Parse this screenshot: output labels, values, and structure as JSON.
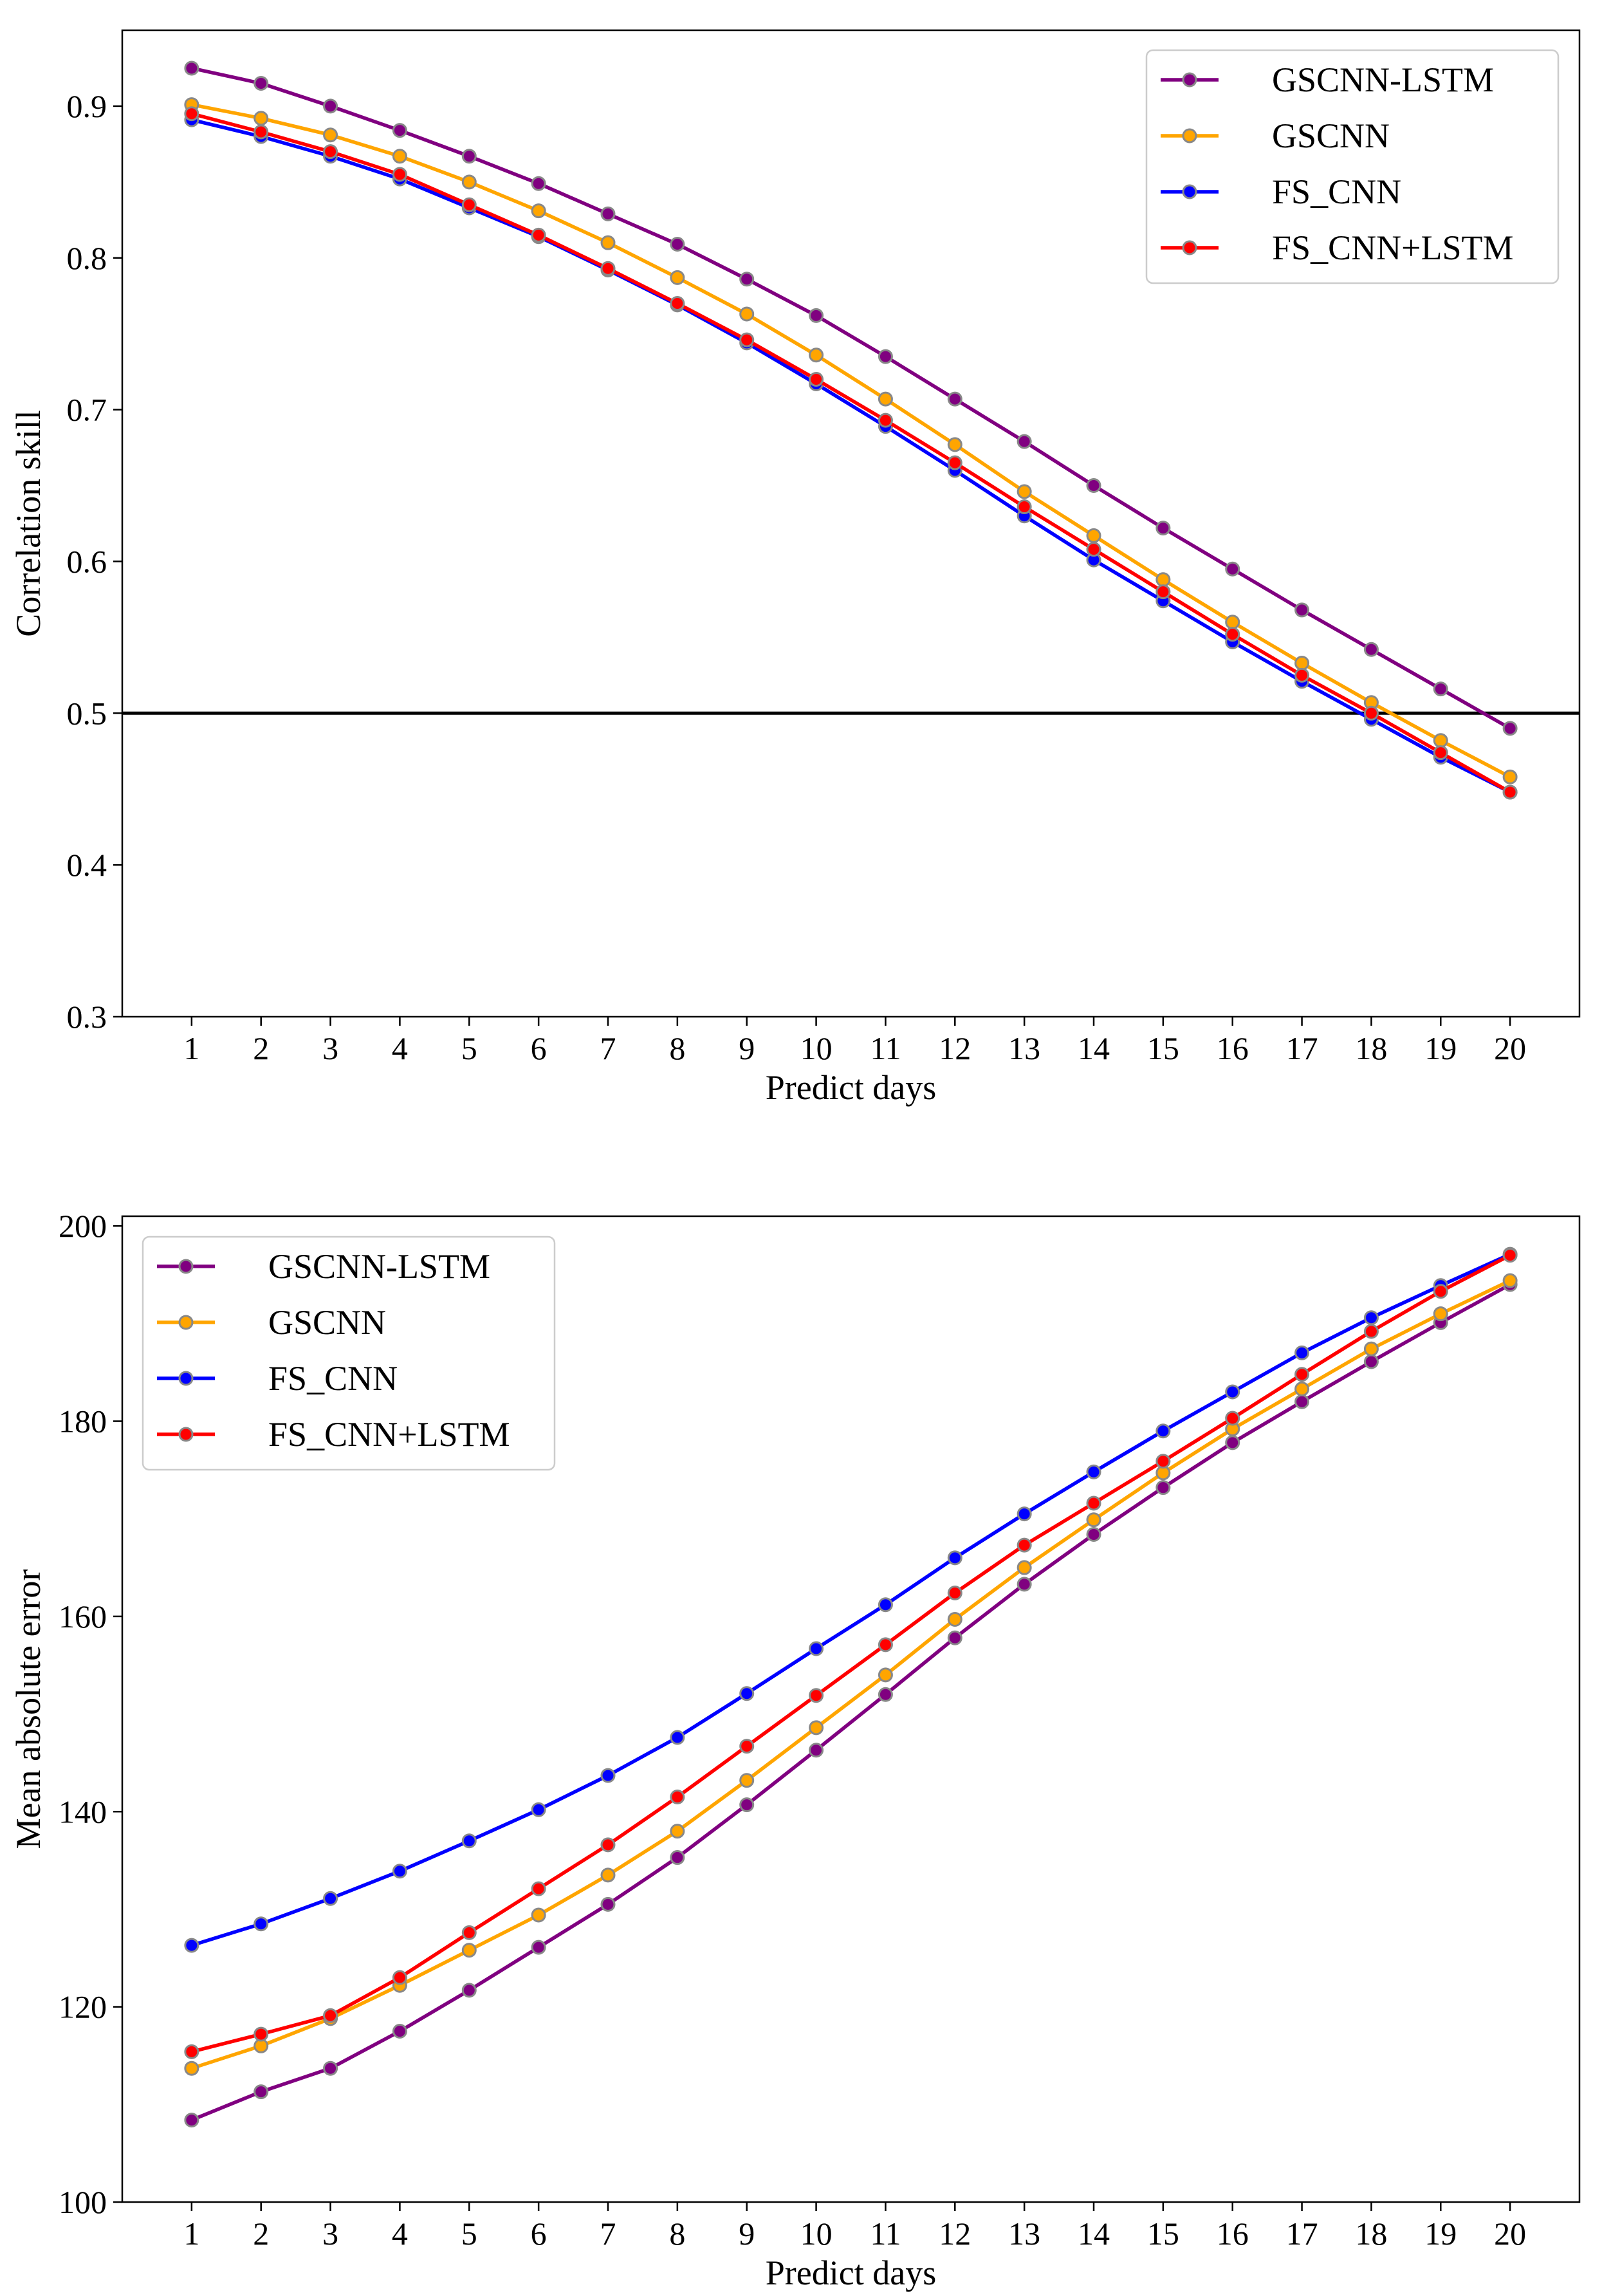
{
  "chart_data": [
    {
      "type": "line",
      "title": "",
      "xlabel": "Predict days",
      "ylabel": "Correlation skill",
      "xlim": [
        0,
        21
      ],
      "ylim": [
        0.3,
        0.95
      ],
      "yticks": [
        0.3,
        0.4,
        0.5,
        0.6,
        0.7,
        0.8,
        0.9
      ],
      "ytick_labels": [
        "0.3",
        "0.4",
        "0.5",
        "0.6",
        "0.7",
        "0.8",
        "0.9"
      ],
      "x": [
        1,
        2,
        3,
        4,
        5,
        6,
        7,
        8,
        9,
        10,
        11,
        12,
        13,
        14,
        15,
        16,
        17,
        18,
        19,
        20
      ],
      "xtick_labels": [
        "1",
        "2",
        "3",
        "4",
        "5",
        "6",
        "7",
        "8",
        "9",
        "10",
        "11",
        "12",
        "13",
        "14",
        "15",
        "16",
        "17",
        "18",
        "19",
        "20"
      ],
      "hline": 0.5,
      "grid": false,
      "legend_position": "top-right",
      "series": [
        {
          "name": "GSCNN-LSTM",
          "color": "#800080",
          "values": [
            0.925,
            0.915,
            0.9,
            0.884,
            0.867,
            0.849,
            0.829,
            0.809,
            0.786,
            0.762,
            0.735,
            0.707,
            0.679,
            0.65,
            0.622,
            0.595,
            0.568,
            0.542,
            0.516,
            0.49
          ]
        },
        {
          "name": "GSCNN",
          "color": "#FFA500",
          "values": [
            0.901,
            0.892,
            0.881,
            0.867,
            0.85,
            0.831,
            0.81,
            0.787,
            0.763,
            0.736,
            0.707,
            0.677,
            0.646,
            0.617,
            0.588,
            0.56,
            0.533,
            0.507,
            0.482,
            0.458
          ]
        },
        {
          "name": "FS_CNN",
          "color": "#0000FF",
          "values": [
            0.891,
            0.88,
            0.867,
            0.852,
            0.833,
            0.814,
            0.792,
            0.769,
            0.744,
            0.717,
            0.689,
            0.66,
            0.63,
            0.601,
            0.574,
            0.547,
            0.521,
            0.496,
            0.471,
            0.448
          ]
        },
        {
          "name": "FS_CNN+LSTM",
          "color": "#FF0000",
          "values": [
            0.895,
            0.883,
            0.87,
            0.855,
            0.835,
            0.815,
            0.793,
            0.77,
            0.746,
            0.72,
            0.693,
            0.665,
            0.636,
            0.608,
            0.58,
            0.552,
            0.525,
            0.5,
            0.474,
            0.448
          ]
        }
      ]
    },
    {
      "type": "line",
      "title": "",
      "xlabel": "Predict days",
      "ylabel": "Mean absolute error",
      "xlim": [
        0,
        21
      ],
      "ylim": [
        100,
        201
      ],
      "yticks": [
        100,
        120,
        140,
        160,
        180,
        200
      ],
      "ytick_labels": [
        "100",
        "120",
        "140",
        "160",
        "180",
        "200"
      ],
      "x": [
        1,
        2,
        3,
        4,
        5,
        6,
        7,
        8,
        9,
        10,
        11,
        12,
        13,
        14,
        15,
        16,
        17,
        18,
        19,
        20
      ],
      "xtick_labels": [
        "1",
        "2",
        "3",
        "4",
        "5",
        "6",
        "7",
        "8",
        "9",
        "10",
        "11",
        "12",
        "13",
        "14",
        "15",
        "16",
        "17",
        "18",
        "19",
        "20"
      ],
      "grid": false,
      "legend_position": "top-left",
      "series": [
        {
          "name": "GSCNN-LSTM",
          "color": "#800080",
          "values": [
            108.4,
            111.3,
            113.7,
            117.5,
            121.7,
            126.1,
            130.5,
            135.3,
            140.7,
            146.3,
            152.0,
            157.8,
            163.3,
            168.4,
            173.2,
            177.8,
            182.0,
            186.1,
            190.1,
            194.0
          ]
        },
        {
          "name": "GSCNN",
          "color": "#FFA500",
          "values": [
            113.7,
            116.0,
            118.8,
            122.2,
            125.8,
            129.4,
            133.5,
            138.0,
            143.2,
            148.6,
            154.0,
            159.7,
            165.0,
            169.9,
            174.7,
            179.2,
            183.3,
            187.4,
            191.0,
            194.4
          ]
        },
        {
          "name": "FS_CNN",
          "color": "#0000FF",
          "values": [
            126.3,
            128.5,
            131.1,
            133.9,
            137.0,
            140.2,
            143.7,
            147.6,
            152.1,
            156.7,
            161.2,
            166.0,
            170.5,
            174.8,
            179.0,
            183.0,
            187.0,
            190.6,
            193.9,
            197.1
          ]
        },
        {
          "name": "FS_CNN+LSTM",
          "color": "#FF0000",
          "values": [
            115.4,
            117.2,
            119.1,
            123.0,
            127.6,
            132.1,
            136.6,
            141.5,
            146.7,
            151.9,
            157.1,
            162.4,
            167.3,
            171.6,
            175.9,
            180.3,
            184.8,
            189.2,
            193.3,
            197.0
          ]
        }
      ]
    }
  ]
}
